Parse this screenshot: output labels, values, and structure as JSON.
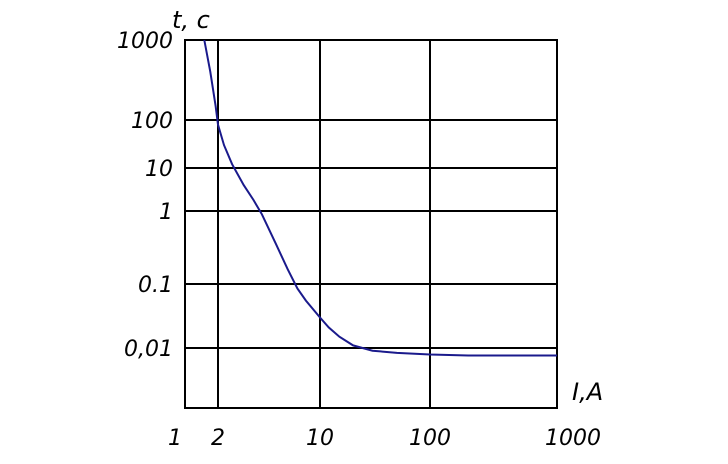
{
  "chart_data": {
    "type": "line",
    "title": "",
    "xlabel": "I,A",
    "ylabel": "t, c",
    "x_ticks": [
      {
        "value": 1,
        "label": "1"
      },
      {
        "value": 2,
        "label": "2"
      },
      {
        "value": 10,
        "label": "10"
      },
      {
        "value": 100,
        "label": "100"
      },
      {
        "value": 1000,
        "label": "1000"
      }
    ],
    "y_ticks": [
      {
        "value": 1000,
        "label": "1000"
      },
      {
        "value": 100,
        "label": "100"
      },
      {
        "value": 10,
        "label": "10"
      },
      {
        "value": 1,
        "label": "1"
      },
      {
        "value": 0.1,
        "label": "0.1"
      },
      {
        "value": 0.01,
        "label": "0,01"
      }
    ],
    "grid": true,
    "series": [
      {
        "color": "#1a1a8c",
        "x": [
          1.5,
          1.7,
          1.9,
          2,
          2.2,
          2.5,
          3,
          3.5,
          4,
          5,
          6,
          7,
          8,
          10,
          12,
          15,
          20,
          30,
          50,
          100,
          200,
          500,
          1000
        ],
        "y": [
          1000,
          400,
          150,
          80,
          30,
          12,
          4,
          1.8,
          0.9,
          0.35,
          0.16,
          0.085,
          0.055,
          0.03,
          0.021,
          0.015,
          0.011,
          0.009,
          0.0083,
          0.0078,
          0.0075,
          0.0075,
          0.0075
        ]
      }
    ]
  }
}
